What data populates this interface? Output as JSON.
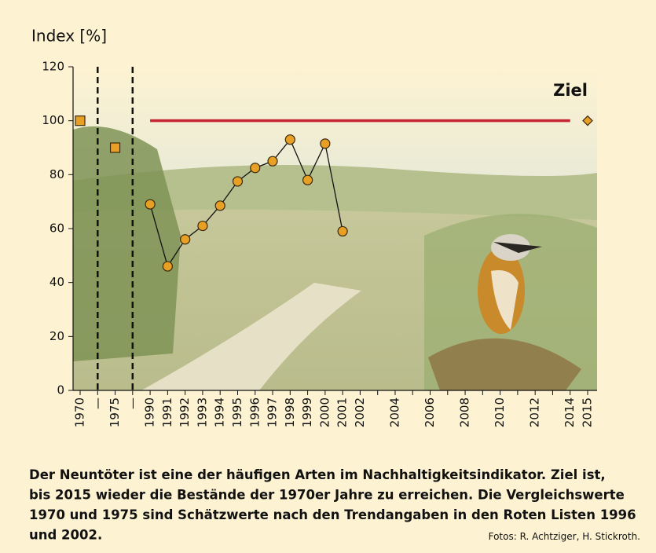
{
  "chart_data": {
    "type": "line",
    "y_label": "Index [%]",
    "ylim": [
      0,
      120
    ],
    "yticks": [
      0,
      20,
      40,
      60,
      80,
      100,
      120
    ],
    "categories": [
      "1970",
      "—",
      "1975",
      "—",
      "1990",
      "1991",
      "1992",
      "1993",
      "1994",
      "1995",
      "1996",
      "1997",
      "1998",
      "1999",
      "2000",
      "2001",
      "2002",
      null,
      "2004",
      null,
      "2006",
      null,
      "2008",
      null,
      "2010",
      null,
      "2012",
      null,
      "2014",
      "2015"
    ],
    "series": [
      {
        "color": "#e8a024",
        "marker": "square",
        "line": false,
        "values": [
          100,
          null,
          90,
          null,
          null,
          null,
          null,
          null,
          null,
          null,
          null,
          null,
          null,
          null,
          null,
          null,
          null,
          null,
          null,
          null,
          null,
          null,
          null,
          null,
          null,
          null,
          null,
          null,
          null,
          null
        ]
      },
      {
        "color": "#e8a024",
        "marker": "circle",
        "line": true,
        "values": [
          null,
          null,
          null,
          null,
          69,
          46,
          56,
          61,
          68.5,
          77.5,
          82.5,
          85,
          93,
          78,
          91.5,
          59,
          null,
          null,
          null,
          null,
          null,
          null,
          null,
          null,
          null,
          null,
          null,
          null,
          null,
          null
        ]
      },
      {
        "color": "#c42530",
        "marker": "none",
        "line": true,
        "values": [
          null,
          null,
          null,
          null,
          100,
          100,
          100,
          100,
          100,
          100,
          100,
          100,
          100,
          100,
          100,
          100,
          100,
          100,
          100,
          100,
          100,
          100,
          100,
          100,
          100,
          100,
          100,
          100,
          100,
          null
        ]
      },
      {
        "color": "#e8a024",
        "marker": "diamond",
        "line": false,
        "values": [
          null,
          null,
          null,
          null,
          null,
          null,
          null,
          null,
          null,
          null,
          null,
          null,
          null,
          null,
          null,
          null,
          null,
          null,
          null,
          null,
          null,
          null,
          null,
          null,
          null,
          null,
          null,
          null,
          null,
          100
        ]
      }
    ],
    "annotation": "Ziel",
    "caption": [
      "Der Neuntöter ist eine der häufigen Arten im Nachhaltigkeitsindikator. Ziel ist,",
      "bis 2015 wieder die Bestände der 1970er Jahre zu erreichen. Die Vergleichswerte",
      "1970 und 1975 sind Schätzwerte nach den Trendangaben in den Roten Listen 1996",
      "und 2002."
    ],
    "credit": "Fotos: R. Achtziger, H. Stickroth."
  }
}
